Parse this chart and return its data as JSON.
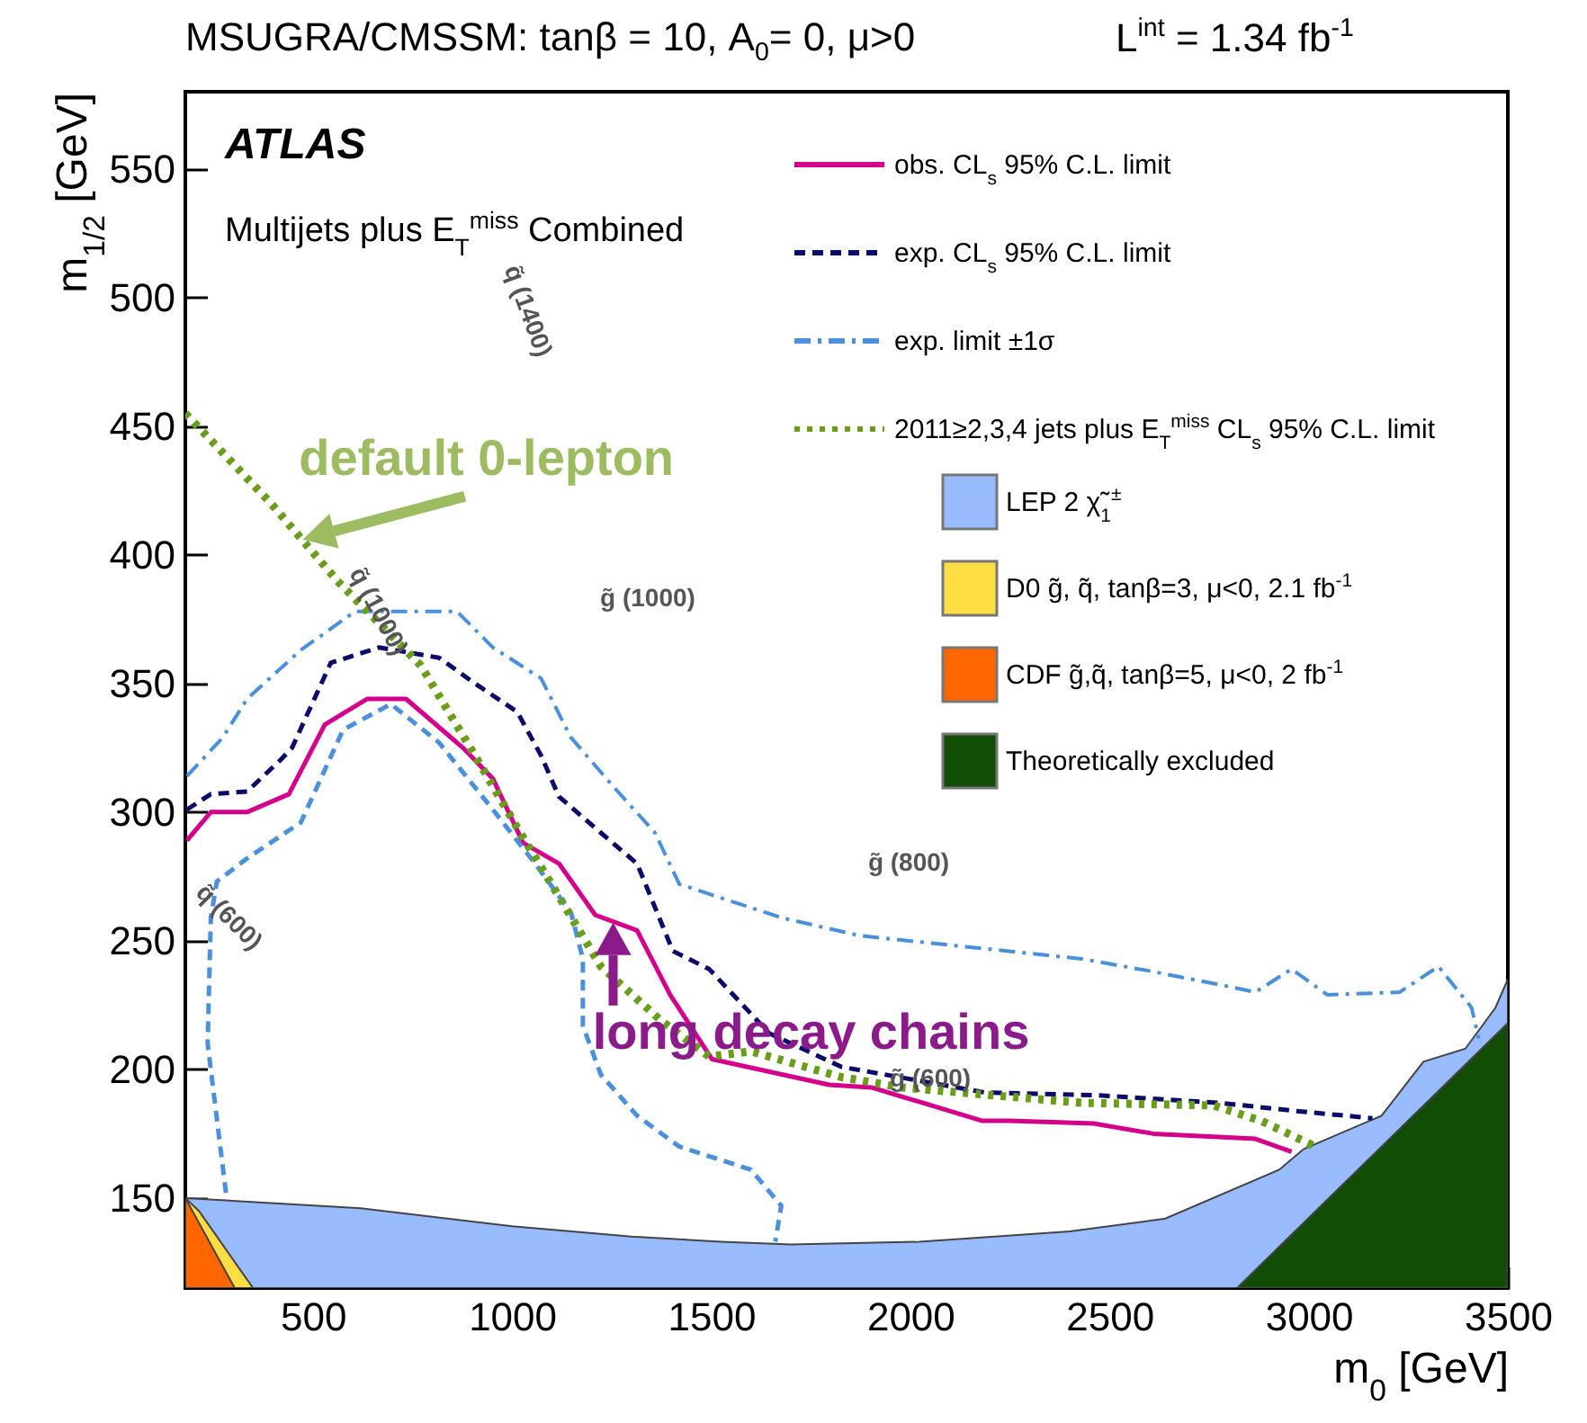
{
  "chart_data": {
    "type": "line",
    "title": "MSUGRA/CMSSM: tanβ = 10, A$_{0}$= 0, μ>0",
    "subtitle": "L$^{int}$ = 1.34 fb$^{-1}$",
    "xlabel": "m$_{0}$ [GeV]",
    "ylabel": "m$_{1/2}$ [GeV]",
    "xlim": [
      180,
      3500
    ],
    "ylim": [
      115,
      580
    ],
    "xticks": [
      500,
      1000,
      1500,
      2000,
      2500,
      3000,
      3500
    ],
    "yticks": [
      150,
      200,
      250,
      300,
      350,
      400,
      450,
      500,
      550
    ],
    "legend": "top right",
    "annotations": [
      "ATLAS",
      "Multijets plus E$_{T}$$^{miss}$ Combined",
      {
        "text": "default 0-lepton",
        "x": 475,
        "y": 406
      },
      {
        "text": "long decay chains",
        "x": 1254,
        "y": 257
      },
      "g̃ (1000)",
      "g̃ (800)",
      "g̃ (600)",
      "q̃ (1000)",
      "q̃ (600)",
      "q̃ (1400)"
    ],
    "series": [
      {
        "type": "area",
        "name": "LEP 2 χ̃$_{1}$$^{±}$",
        "color": "#99bbff",
        "x": [
          180,
          620,
          1000,
          1300,
          1525,
          1700,
          2023,
          2400,
          2640,
          2926,
          2987,
          3183,
          3288,
          3393,
          3469,
          3500
        ],
        "values": [
          150,
          146,
          139,
          135,
          133,
          132,
          133,
          137,
          142,
          161,
          169,
          182,
          203,
          208,
          224,
          235
        ]
      },
      {
        "type": "area",
        "name": "D0 g̃, q̃, tanβ=3, μ<0, 2.1 fb$^{-1}$",
        "color": "#ffdd44",
        "x": [
          180,
          214,
          350
        ],
        "values": [
          150,
          145,
          115
        ]
      },
      {
        "type": "area",
        "name": "CDF g̃,q̃, tanβ=5, μ<0, 2 fb$^{-1}$",
        "color": "#ff6600",
        "x": [
          180,
          304
        ],
        "values": [
          150,
          115
        ]
      },
      {
        "type": "area",
        "name": "Theoretically excluded",
        "color": "#114d05",
        "x": [
          2820,
          3500
        ],
        "values": [
          115,
          218
        ]
      },
      {
        "name": "obs. CL$_{s}$ 95% C.L. limit",
        "color": "#d4008c",
        "line_style": "solid",
        "x": [
          184,
          244,
          335,
          440,
          530,
          636,
          734,
          877,
          952,
          1028,
          1118,
          1209,
          1314,
          1397,
          1502,
          1796,
          1902,
          2181,
          2248,
          2460,
          2610,
          2866,
          2957
        ],
        "values": [
          289,
          300,
          300,
          307,
          334,
          344,
          344,
          325,
          313,
          288,
          280,
          260,
          254,
          229,
          204,
          194,
          193,
          180,
          180,
          179,
          175,
          173,
          168
        ]
      },
      {
        "name": "exp. CL$_{s}$ 95% C.L. limit",
        "color": "#0b0b6b",
        "line_style": "dashed",
        "x": [
          184,
          244,
          335,
          417,
          448,
          545,
          666,
          817,
          907,
          1013,
          1073,
          1118,
          1223,
          1314,
          1404,
          1495,
          1646,
          1827,
          2188,
          2460,
          2776,
          2957,
          3160
        ],
        "values": [
          301,
          307,
          308,
          320,
          325,
          358,
          364,
          360,
          350,
          339,
          322,
          306,
          292,
          280,
          246,
          239,
          214,
          201,
          191,
          190,
          187,
          184,
          181
        ]
      },
      {
        "name": "exp. limit ±1σ",
        "color": "#4a90dd",
        "line_style": "dashdot",
        "x": [
          184,
          274,
          335,
          470,
          606,
          862,
          952,
          1073,
          1148,
          1254,
          1359,
          1420,
          1676,
          1872,
          2429,
          2610,
          2806,
          2866,
          2957,
          3047,
          3228,
          3326,
          3409,
          3427
        ],
        "values": [
          314,
          329,
          344,
          363,
          378,
          378,
          364,
          352,
          329,
          310,
          292,
          272,
          259,
          252,
          243,
          238,
          232,
          230,
          239,
          229,
          230,
          240,
          224,
          212
        ]
      },
      {
        "color": "#4a90dd",
        "line_style": "dashed",
        "x": [
          282,
          236,
          244,
          259,
          335,
          470,
          576,
          696,
          817,
          952,
          1058,
          1148,
          1178,
          1178,
          1223,
          1314,
          1420,
          1600,
          1676,
          1661
        ],
        "values": [
          152,
          210,
          259,
          273,
          282,
          296,
          332,
          342,
          327,
          301,
          280,
          261,
          243,
          217,
          198,
          182,
          170,
          161,
          147,
          133
        ]
      },
      {
        "name": "2011≥2,3,4 jets plus E$_{T}$$^{miss}$ CL$_{s}$ 95% C.L. limit",
        "color": "#6a9e1a",
        "line_style": "dotted",
        "x": [
          180,
          395,
          561,
          771,
          907,
          1013,
          1103,
          1223,
          1374,
          1495,
          1600,
          1827,
          1977,
          2429,
          2761,
          2881,
          3017
        ],
        "values": [
          455,
          420,
          390,
          357,
          322,
          294,
          271,
          240,
          219,
          205,
          207,
          197,
          193,
          187,
          186,
          180,
          170
        ]
      }
    ]
  }
}
